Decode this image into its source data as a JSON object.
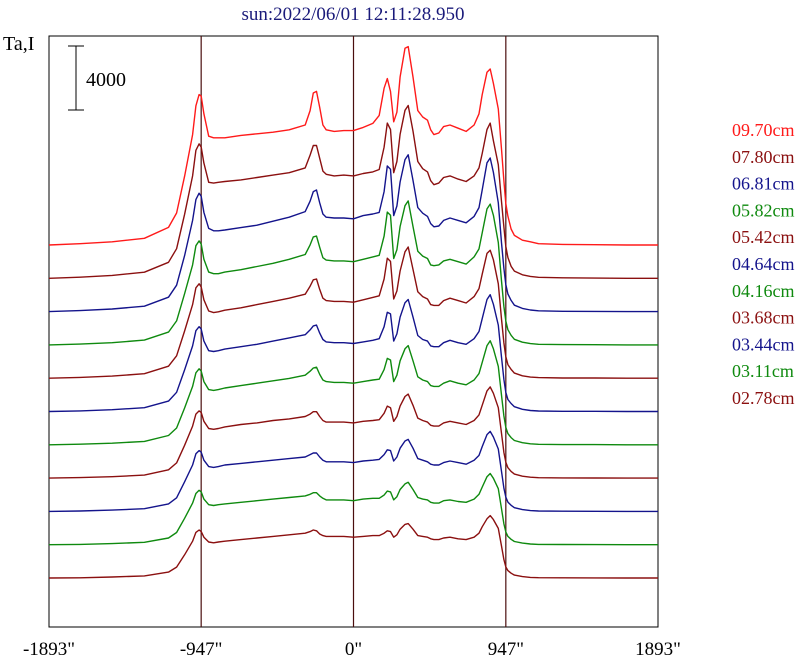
{
  "chart_data": {
    "type": "line",
    "title": "sun:2022/06/01 12:11:28.950",
    "ylabel": "Ta,I",
    "xlabel": "",
    "xlim": [
      -1893,
      1893
    ],
    "x_ticks": [
      {
        "value": -1893,
        "label": "-1893\""
      },
      {
        "value": -947,
        "label": "-947\""
      },
      {
        "value": 0,
        "label": "0\""
      },
      {
        "value": 947,
        "label": "947\""
      },
      {
        "value": 1893,
        "label": "1893\""
      }
    ],
    "vertical_markers": [
      -947,
      0,
      947
    ],
    "scale_bar": {
      "value": 4000,
      "label": "4000"
    },
    "grid": false,
    "legend_placement": "right",
    "profile_x": [
      -1893,
      -1700,
      -1500,
      -1300,
      -1150,
      -1100,
      -1050,
      -1000,
      -980,
      -960,
      -947,
      -930,
      -900,
      -870,
      -840,
      -800,
      -700,
      -600,
      -500,
      -400,
      -300,
      -270,
      -250,
      -230,
      -210,
      -190,
      -170,
      -120,
      -60,
      0,
      60,
      120,
      160,
      190,
      210,
      230,
      250,
      270,
      290,
      320,
      340,
      370,
      400,
      430,
      460,
      480,
      500,
      530,
      560,
      600,
      650,
      700,
      750,
      780,
      800,
      830,
      850,
      870,
      900,
      920,
      935,
      947,
      960,
      980,
      1000,
      1050,
      1100,
      1150,
      1300,
      1500,
      1700,
      1893
    ],
    "series": [
      {
        "name": "09.70cm",
        "color": "#ff1a1a",
        "baseline": 0,
        "values": [
          0,
          80,
          200,
          420,
          1100,
          2000,
          4300,
          6900,
          8700,
          9400,
          9300,
          8200,
          6800,
          6700,
          6700,
          6700,
          6850,
          6950,
          7050,
          7200,
          7500,
          8400,
          9500,
          9600,
          8600,
          7500,
          7200,
          7100,
          7150,
          7150,
          7350,
          7600,
          8100,
          9800,
          10400,
          9600,
          7700,
          8300,
          10500,
          12300,
          12400,
          10500,
          8400,
          8000,
          7800,
          7200,
          6900,
          7000,
          7400,
          7500,
          7300,
          7100,
          7500,
          8200,
          9400,
          10800,
          11000,
          10100,
          8500,
          6000,
          4000,
          2600,
          1800,
          1000,
          600,
          300,
          200,
          80,
          40,
          20,
          0,
          0
        ]
      },
      {
        "name": "07.80cm",
        "color": "#8b1010",
        "baseline": 1,
        "values": [
          0,
          70,
          180,
          380,
          1000,
          1850,
          4000,
          6400,
          8000,
          8400,
          8200,
          7200,
          6000,
          5950,
          6000,
          6050,
          6150,
          6300,
          6450,
          6600,
          6900,
          7700,
          8300,
          8300,
          7500,
          6700,
          6500,
          6400,
          6450,
          6400,
          6550,
          6650,
          6800,
          8200,
          9700,
          9300,
          6600,
          7300,
          9000,
          10500,
          10800,
          9200,
          7300,
          6850,
          6650,
          6100,
          5850,
          5950,
          6300,
          6400,
          6200,
          6050,
          6400,
          6900,
          7800,
          9300,
          9700,
          8600,
          7100,
          4800,
          3200,
          2000,
          1300,
          750,
          450,
          220,
          120,
          60,
          30,
          10,
          0,
          0
        ]
      },
      {
        "name": "06.81cm",
        "color": "#14148c",
        "baseline": 2,
        "values": [
          0,
          60,
          160,
          340,
          900,
          1650,
          3500,
          5700,
          7000,
          7400,
          7200,
          6200,
          5200,
          5050,
          5050,
          5100,
          5250,
          5400,
          5650,
          5900,
          6250,
          6900,
          7500,
          7600,
          6800,
          6100,
          5900,
          5850,
          5850,
          5800,
          6000,
          6100,
          6200,
          7500,
          9100,
          8900,
          6000,
          6600,
          8100,
          9500,
          9800,
          8200,
          6500,
          6150,
          5950,
          5500,
          5300,
          5350,
          5700,
          5850,
          5700,
          5550,
          5950,
          6500,
          7600,
          9300,
          9600,
          8700,
          6800,
          4300,
          2700,
          1700,
          1100,
          700,
          400,
          200,
          100,
          50,
          20,
          10,
          0,
          0
        ]
      },
      {
        "name": "05.82cm",
        "color": "#0f8a0f",
        "baseline": 3,
        "values": [
          0,
          50,
          140,
          300,
          800,
          1500,
          3200,
          5000,
          6200,
          6500,
          6300,
          5350,
          4550,
          4450,
          4450,
          4550,
          4700,
          4900,
          5100,
          5350,
          5650,
          6250,
          6750,
          6800,
          6100,
          5450,
          5300,
          5250,
          5250,
          5200,
          5350,
          5500,
          5600,
          6800,
          8300,
          8100,
          5400,
          5950,
          7400,
          8700,
          9000,
          7400,
          5850,
          5550,
          5400,
          5000,
          4950,
          5000,
          5250,
          5350,
          5200,
          5050,
          5500,
          6000,
          7000,
          8500,
          8800,
          8100,
          6400,
          4000,
          2400,
          1500,
          950,
          600,
          350,
          170,
          80,
          40,
          20,
          10,
          0,
          0
        ]
      },
      {
        "name": "05.42cm",
        "color": "#8b1010",
        "baseline": 4,
        "values": [
          0,
          50,
          130,
          280,
          750,
          1400,
          2950,
          4600,
          5650,
          5900,
          5700,
          4900,
          4200,
          4100,
          4150,
          4250,
          4400,
          4600,
          4800,
          5000,
          5250,
          5750,
          6150,
          6200,
          5550,
          5000,
          4850,
          4800,
          4800,
          4750,
          4900,
          5050,
          5150,
          6200,
          7500,
          7300,
          4950,
          5450,
          6700,
          7900,
          8200,
          6800,
          5400,
          5100,
          4950,
          4600,
          4550,
          4550,
          4850,
          5000,
          4850,
          4700,
          5100,
          5600,
          6500,
          7800,
          8000,
          7400,
          5900,
          3700,
          2200,
          1350,
          850,
          550,
          320,
          150,
          70,
          35,
          15,
          10,
          0,
          0
        ]
      },
      {
        "name": "04.64cm",
        "color": "#14148c",
        "baseline": 5,
        "values": [
          0,
          40,
          110,
          240,
          650,
          1200,
          2600,
          4100,
          5050,
          5300,
          5150,
          4400,
          3800,
          3750,
          3800,
          3900,
          4050,
          4200,
          4400,
          4600,
          4800,
          5100,
          5350,
          5400,
          4900,
          4500,
          4350,
          4300,
          4300,
          4250,
          4350,
          4450,
          4550,
          5300,
          6200,
          6100,
          4400,
          4850,
          5900,
          6800,
          7000,
          5900,
          4750,
          4500,
          4400,
          4100,
          4050,
          4050,
          4300,
          4450,
          4300,
          4200,
          4550,
          5000,
          5800,
          7000,
          7300,
          6700,
          5400,
          3400,
          2000,
          1200,
          750,
          500,
          300,
          140,
          60,
          30,
          15,
          10,
          0,
          0
        ]
      },
      {
        "name": "04.16cm",
        "color": "#0f8a0f",
        "baseline": 6,
        "values": [
          0,
          35,
          100,
          210,
          580,
          1050,
          2300,
          3650,
          4500,
          4750,
          4600,
          3950,
          3450,
          3400,
          3450,
          3550,
          3700,
          3850,
          4000,
          4150,
          4350,
          4600,
          4800,
          4850,
          4400,
          4050,
          3950,
          3900,
          3900,
          3850,
          3950,
          4050,
          4100,
          4700,
          5400,
          5300,
          3950,
          4350,
          5250,
          6000,
          6200,
          5250,
          4250,
          4050,
          3950,
          3700,
          3650,
          3650,
          3850,
          4000,
          3850,
          3750,
          4050,
          4450,
          5150,
          6200,
          6500,
          6000,
          4900,
          3100,
          1800,
          1100,
          700,
          450,
          270,
          130,
          60,
          30,
          15,
          10,
          0,
          0
        ]
      },
      {
        "name": "03.68cm",
        "color": "#8b1010",
        "baseline": 7,
        "values": [
          0,
          30,
          90,
          190,
          520,
          950,
          2050,
          3250,
          4000,
          4200,
          4100,
          3550,
          3100,
          3050,
          3100,
          3200,
          3350,
          3450,
          3600,
          3700,
          3850,
          4000,
          4150,
          4150,
          3850,
          3600,
          3500,
          3500,
          3500,
          3450,
          3550,
          3600,
          3650,
          4050,
          4500,
          4400,
          3550,
          3850,
          4500,
          5100,
          5250,
          4550,
          3750,
          3600,
          3500,
          3300,
          3250,
          3250,
          3450,
          3550,
          3450,
          3350,
          3600,
          3950,
          4550,
          5450,
          5700,
          5300,
          4400,
          2800,
          1600,
          1000,
          650,
          420,
          250,
          120,
          55,
          25,
          15,
          5,
          0,
          0
        ]
      },
      {
        "name": "03.44cm",
        "color": "#14148c",
        "baseline": 8,
        "values": [
          0,
          25,
          80,
          170,
          470,
          850,
          1850,
          2900,
          3600,
          3800,
          3700,
          3200,
          2800,
          2750,
          2800,
          2900,
          3000,
          3100,
          3200,
          3300,
          3400,
          3550,
          3650,
          3650,
          3400,
          3200,
          3100,
          3100,
          3100,
          3050,
          3150,
          3200,
          3250,
          3550,
          3850,
          3800,
          3150,
          3400,
          3950,
          4400,
          4500,
          3950,
          3300,
          3200,
          3100,
          2950,
          2900,
          2900,
          3050,
          3150,
          3050,
          2950,
          3200,
          3500,
          4050,
          4800,
          5000,
          4650,
          3900,
          2500,
          1450,
          900,
          580,
          380,
          230,
          110,
          50,
          25,
          10,
          5,
          0,
          0
        ]
      },
      {
        "name": "03.11cm",
        "color": "#0f8a0f",
        "baseline": 9,
        "values": [
          0,
          20,
          70,
          150,
          420,
          760,
          1650,
          2600,
          3200,
          3400,
          3300,
          2850,
          2500,
          2450,
          2500,
          2550,
          2650,
          2750,
          2850,
          2950,
          3050,
          3150,
          3250,
          3250,
          3050,
          2900,
          2800,
          2800,
          2800,
          2750,
          2850,
          2900,
          2900,
          3100,
          3350,
          3300,
          2800,
          3000,
          3450,
          3800,
          3900,
          3450,
          2950,
          2850,
          2800,
          2650,
          2600,
          2600,
          2750,
          2800,
          2700,
          2650,
          2850,
          3150,
          3600,
          4250,
          4450,
          4150,
          3500,
          2250,
          1300,
          800,
          520,
          340,
          200,
          100,
          45,
          20,
          10,
          5,
          0,
          0
        ]
      },
      {
        "name": "02.78cm",
        "color": "#8b1010",
        "baseline": 10,
        "values": [
          0,
          15,
          60,
          130,
          370,
          680,
          1450,
          2300,
          2850,
          3000,
          2900,
          2550,
          2250,
          2200,
          2250,
          2300,
          2400,
          2500,
          2600,
          2700,
          2800,
          2900,
          3000,
          2950,
          2750,
          2650,
          2600,
          2600,
          2600,
          2550,
          2600,
          2650,
          2650,
          2800,
          2950,
          2900,
          2550,
          2700,
          3050,
          3350,
          3400,
          3050,
          2650,
          2600,
          2550,
          2450,
          2400,
          2400,
          2500,
          2550,
          2450,
          2400,
          2550,
          2800,
          3200,
          3700,
          3900,
          3650,
          3100,
          2000,
          1150,
          700,
          460,
          300,
          180,
          90,
          40,
          20,
          10,
          5,
          0,
          0
        ]
      }
    ]
  }
}
